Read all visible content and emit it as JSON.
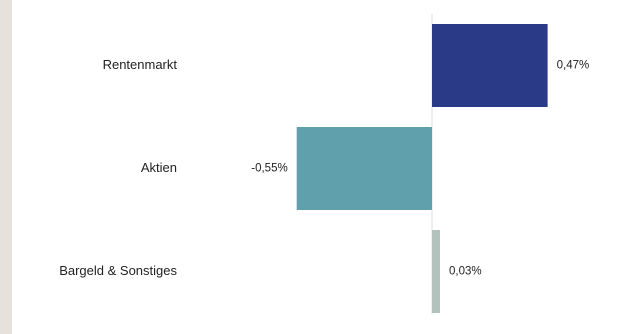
{
  "colors": {
    "page_background": "#e6e1db",
    "panel_background": "#ffffff",
    "zero_line": "#dddddd",
    "text": "#222222"
  },
  "chart_data": {
    "type": "bar",
    "orientation": "horizontal",
    "title": "",
    "xlabel": "",
    "ylabel": "",
    "xlim": [
      -0.55,
      0.47
    ],
    "grid": false,
    "legend": "none",
    "categories": [
      "Rentenmarkt",
      "Aktien",
      "Bargeld & Sonstiges"
    ],
    "values": [
      0.47,
      -0.55,
      0.03
    ],
    "value_labels": [
      "0,47%",
      "-0,55%",
      "0,03%"
    ],
    "bar_colors": [
      "#2b3a86",
      "#5fa0ac",
      "#b2c3be"
    ]
  }
}
